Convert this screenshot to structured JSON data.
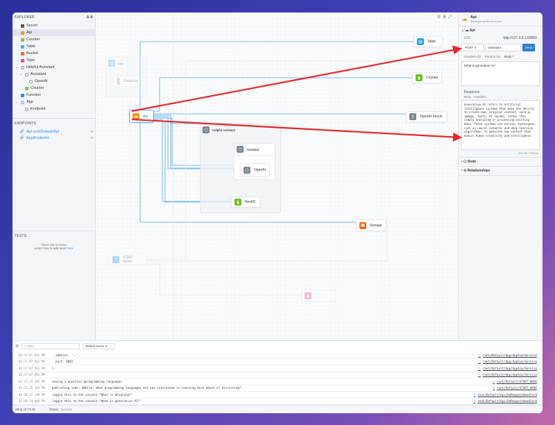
{
  "explorer": {
    "title": "EXPLORER",
    "items": [
      {
        "label": "Secret",
        "icon": "key-icon",
        "color": "#555555",
        "indent": 0
      },
      {
        "label": "Api",
        "icon": "cloud-icon",
        "color": "#f39a1e",
        "indent": 0,
        "selected": true
      },
      {
        "label": "Counter",
        "icon": "counter-icon",
        "color": "#7ac943",
        "indent": 0
      },
      {
        "label": "Table",
        "icon": "table-icon",
        "color": "#3fb3e0",
        "indent": 0
      },
      {
        "label": "Bucket",
        "icon": "bucket-icon",
        "color": "#f36a1e",
        "indent": 0
      },
      {
        "label": "Topic",
        "icon": "topic-icon",
        "color": "#ec4899",
        "indent": 0
      },
      {
        "label": "Helpful Assistant",
        "icon": "cube-icon",
        "color": "#8893a3",
        "indent": 0,
        "expand": true
      },
      {
        "label": "Assistant",
        "icon": "cube-icon",
        "color": "#8893a3",
        "indent": 1,
        "expand": true
      },
      {
        "label": "OpenAI",
        "icon": "cube-icon",
        "color": "#8893a3",
        "indent": 2
      },
      {
        "label": "Counter",
        "icon": "counter-icon",
        "color": "#7ac943",
        "indent": 1
      },
      {
        "label": "Function",
        "icon": "function-icon",
        "color": "#2a8ee0",
        "indent": 0
      },
      {
        "label": "App",
        "icon": "cube-icon",
        "color": "#8893a3",
        "indent": 0,
        "expand": true
      },
      {
        "label": "Endpoint",
        "icon": "cube-icon",
        "color": "#8893a3",
        "indent": 1
      }
    ]
  },
  "endpoints": {
    "title": "ENDPOINTS",
    "items": [
      "Api root/Default/Api",
      "App/Endpoint"
    ]
  },
  "tests": {
    "title": "TESTS",
    "empty": "There are no tests.",
    "learn": "Learn how to add tests ",
    "link": "here."
  },
  "canvas": {
    "nodes": {
      "app": "App",
      "endpoint": "Endpoint",
      "api": "Api",
      "table": "Table",
      "counter": "Counter",
      "secret": "OpenAI Secret",
      "helpful": "Helpful Assistant",
      "assistant": "Assistant",
      "openai": "OpenAI",
      "nextid": "NextID",
      "storage": "Storage",
      "start": "START HERE"
    }
  },
  "inspector": {
    "title": "Api",
    "subtitle": "@winglang/sdk.cloud.Api",
    "section": "Api",
    "url_label": "URL",
    "url": "http://127.0.0.1:64550",
    "method": "POST",
    "path": "/assistant",
    "send": "Send",
    "tabs": [
      "Headers (0)",
      "Params (0)",
      "Body *"
    ],
    "body": "What is generative AI?",
    "response_label": "Response",
    "response_tabs": [
      "Body",
      "Headers"
    ],
    "response": "Generative AI refers to artificial intelligence systems that have the ability to create new, original content, such as images, texts, or sounds, rather than simply analyzing or processing existing data. These systems use various techniques, such as neural networks and deep learning algorithms, to generate new content that mimics human creativity and intelligence.",
    "status": "200 OK",
    "time": "2792ms",
    "node": "Node",
    "relationships": "Relationships"
  },
  "logs": {
    "filter_placeholder": "Filter...",
    "level": "Default levels",
    "rows": [
      {
        "time": "02:17:07.561 PM",
        "msg": "  address: '::',",
        "src": "root/Default/App/AppSim/Service",
        "icon": "cube-icon"
      },
      {
        "time": "02:17:07.561 PM",
        "msg": "  port: 8081",
        "src": "root/Default/App/AppSim/Service",
        "icon": "cube-icon"
      },
      {
        "time": "02:17:07.561 PM",
        "msg": "}",
        "src": "root/Default/App/AppSim/Service",
        "icon": "cube-icon"
      },
      {
        "time": "02:17:07.561 PM",
        "msg": "",
        "src": "root/Default/App/AppSim/Service",
        "icon": "cube-icon"
      },
      {
        "time": "02:17:24.205 PM",
        "msg": "asking a question $programming languages",
        "src": "root/Default/START HERE",
        "icon": "function-icon"
      },
      {
        "time": "02:17:25.105 PM",
        "msg": "publishing joke: $Hello! What programming languages are you interested in learning more about or discussing?",
        "src": "root/Default/START HERE",
        "icon": "function-icon"
      },
      {
        "time": "02:46:37.199 PM",
        "msg": "loggin this to the console \"What is Winglang?\"",
        "src": "root/Default/Api/OnRequestHandler0",
        "icon": "function-icon"
      },
      {
        "time": "02:46:54.466 PM",
        "msg": "loggin this to the console \"What is generative AI?\"",
        "src": "root/Default/Api/OnRequestHandler0",
        "icon": "function-icon"
      }
    ]
  },
  "statusbar": {
    "version": "Wing v0.73.40",
    "status_label": "Status:",
    "status": "success"
  },
  "colors": {
    "accent": "#2a8ee0",
    "annotation": "#e8262c"
  }
}
